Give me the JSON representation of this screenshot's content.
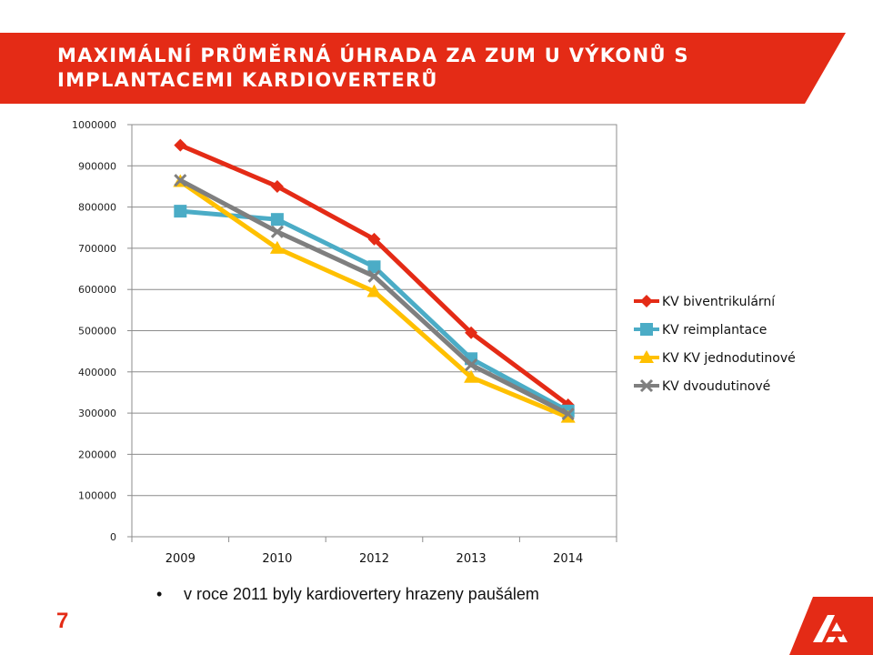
{
  "slide": {
    "title": "MAXIMÁLNÍ PRŮMĚRNÁ ÚHRADA ZA ZUM U VÝKONŮ S IMPLANTACEMI KARDIOVERTERŮ",
    "bullet": "v roce 2011 byly kardiovertery hrazeny paušálem",
    "page_number": "7",
    "accent_color": "#e42b16",
    "logo_icon": "company-logo-icon"
  },
  "chart_data": {
    "type": "line",
    "title": "",
    "xlabel": "",
    "ylabel": "",
    "categories": [
      "2009",
      "2010",
      "2012",
      "2013",
      "2014"
    ],
    "ylim": [
      0,
      1000000
    ],
    "yticks": [
      "0",
      "100000",
      "200000",
      "300000",
      "400000",
      "500000",
      "600000",
      "700000",
      "800000",
      "900000",
      "1000000"
    ],
    "grid": true,
    "legend_position": "right",
    "series": [
      {
        "name": "KV biventrikulární",
        "color": "#e42b16",
        "marker": "diamond",
        "values": [
          950000,
          850000,
          722000,
          495000,
          320000
        ]
      },
      {
        "name": "KV reimplantace",
        "color": "#4bacc6",
        "marker": "square",
        "values": [
          790000,
          770000,
          655000,
          432000,
          305000
        ]
      },
      {
        "name": "KV KV jednodutinové",
        "color": "#ffc000",
        "marker": "triangle",
        "values": [
          862000,
          700000,
          595000,
          387000,
          290000
        ]
      },
      {
        "name": "KV dvoudutinové",
        "color": "#7f7f7f",
        "marker": "x",
        "values": [
          865000,
          740000,
          632000,
          417000,
          298000
        ]
      }
    ]
  }
}
